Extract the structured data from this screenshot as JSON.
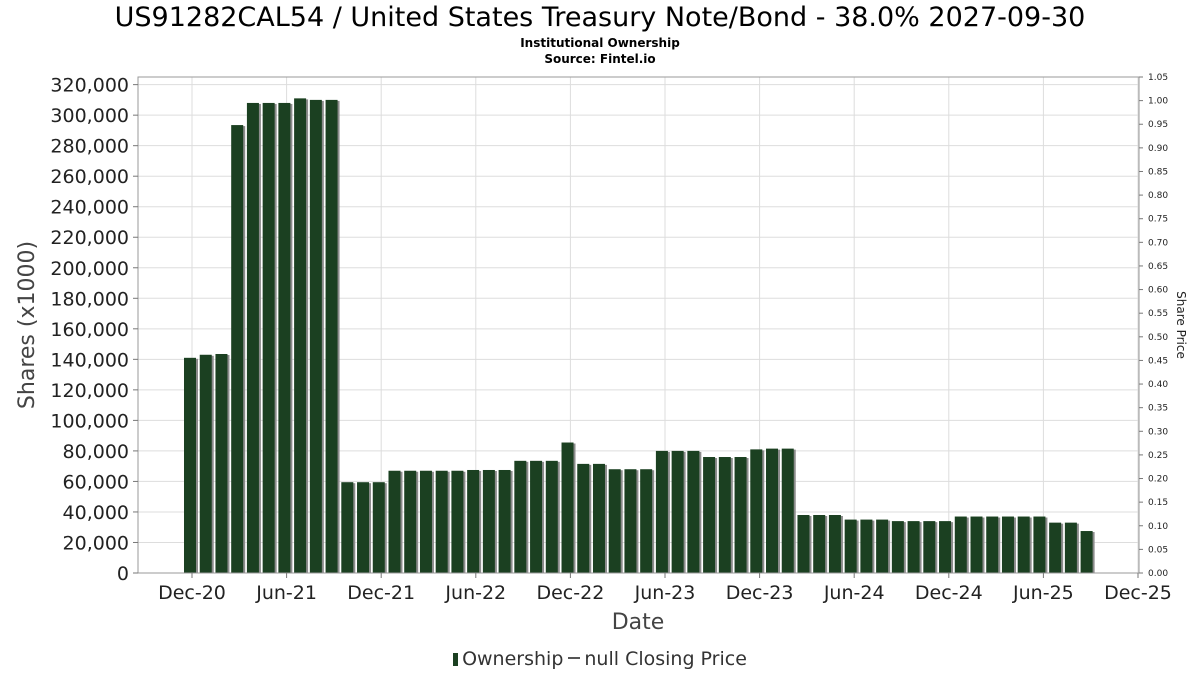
{
  "chart_data": {
    "type": "bar",
    "title": "US91282CAL54 / United States Treasury Note/Bond - 38.0% 2027-09-30",
    "subtitle_lines": [
      "Institutional Ownership",
      "Source: Fintel.io"
    ],
    "xlabel": "Date",
    "ylabel": "Shares (x1000)",
    "y2label": "Share Price",
    "ylim": [
      0,
      325000
    ],
    "y2lim": [
      0,
      1.05
    ],
    "yticks": [
      "0",
      "20,000",
      "40,000",
      "60,000",
      "80,000",
      "100,000",
      "120,000",
      "140,000",
      "160,000",
      "180,000",
      "200,000",
      "220,000",
      "240,000",
      "260,000",
      "280,000",
      "300,000",
      "320,000"
    ],
    "y2ticks": [
      "0.00",
      "0.05",
      "0.10",
      "0.15",
      "0.20",
      "0.25",
      "0.30",
      "0.35",
      "0.40",
      "0.45",
      "0.50",
      "0.55",
      "0.60",
      "0.65",
      "0.70",
      "0.75",
      "0.80",
      "0.85",
      "0.90",
      "0.95",
      "1.00",
      "1.05"
    ],
    "xticks": [
      "Dec-20",
      "Jun-21",
      "Dec-21",
      "Jun-22",
      "Dec-22",
      "Jun-23",
      "Dec-23",
      "Jun-24",
      "Dec-24",
      "Jun-25",
      "Dec-25"
    ],
    "grid": true,
    "legend_position": "bottom",
    "colors": {
      "bar": "#1b4021",
      "bar_shadow": "#8c8c8c",
      "grid": "#dddddd",
      "frame": "#999999"
    },
    "series": [
      {
        "name": "Ownership",
        "values": [
          141000,
          143000,
          143500,
          293500,
          308000,
          308000,
          308000,
          311000,
          310000,
          310000,
          59500,
          59500,
          59500,
          67000,
          67000,
          67000,
          67000,
          67000,
          67500,
          67500,
          67500,
          73500,
          73500,
          73500,
          85500,
          71500,
          71500,
          68000,
          68000,
          68000,
          80000,
          80000,
          80000,
          76000,
          76000,
          76000,
          81000,
          81500,
          81500,
          38000,
          38000,
          38000,
          35000,
          35000,
          35000,
          34000,
          34000,
          34000,
          34000,
          37000,
          37000,
          37000,
          37000,
          37000,
          37000,
          33000,
          33000,
          27500
        ]
      }
    ],
    "legend": [
      {
        "name": "Ownership",
        "kind": "bar"
      },
      {
        "name": "null Closing Price",
        "kind": "line"
      }
    ]
  }
}
